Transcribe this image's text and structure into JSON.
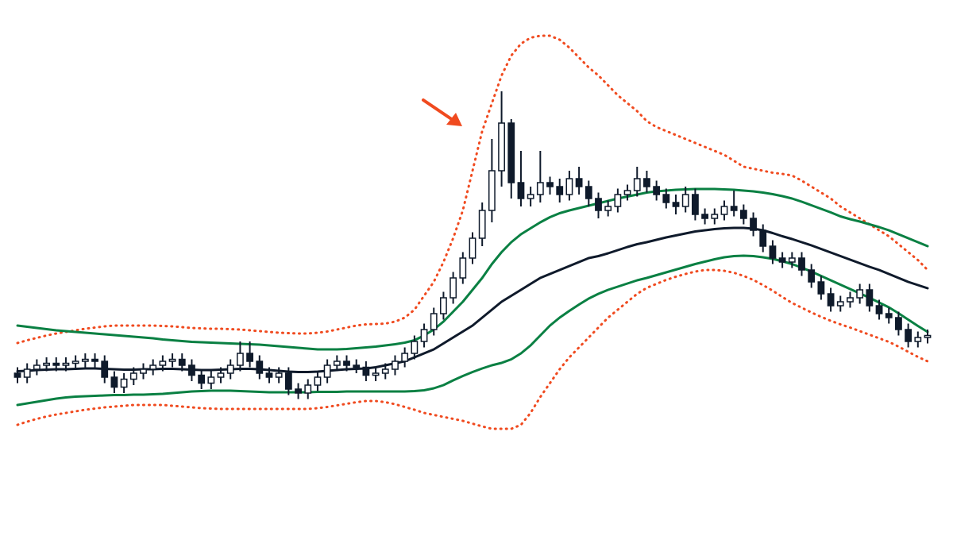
{
  "chart_data": {
    "type": "candlestick",
    "up_color": "#ffffff",
    "down_color": "#0f1a2b",
    "outline_color": "#0f1a2b",
    "ylim": [
      0,
      135
    ],
    "categories": [
      null,
      null,
      null,
      null,
      null,
      null,
      null,
      null,
      null,
      null,
      null,
      null,
      null,
      null,
      null,
      null,
      null,
      null,
      null,
      null,
      null,
      null,
      null,
      null,
      null,
      null,
      null,
      null,
      null,
      null,
      null,
      null,
      null,
      null,
      null,
      null,
      null,
      null,
      null,
      null,
      null,
      null,
      null,
      null,
      null,
      null,
      null,
      null,
      null,
      null,
      null,
      null,
      null,
      null,
      null,
      null,
      null,
      null,
      null,
      null,
      null,
      null,
      null,
      null,
      null,
      null,
      null,
      null,
      null,
      null,
      null,
      null,
      null,
      null,
      null,
      null,
      null,
      null,
      null,
      null,
      null,
      null,
      null,
      null,
      null,
      null,
      null,
      null,
      null,
      null,
      null,
      null,
      null,
      null,
      null
    ],
    "open": [
      41,
      40,
      42,
      43,
      43.5,
      43,
      43.5,
      44,
      44.5,
      44,
      40,
      37.5,
      39.5,
      41,
      42,
      43,
      44,
      44.5,
      43,
      40.5,
      38.5,
      40,
      41,
      43,
      46,
      44,
      41,
      40,
      41,
      37,
      36,
      38,
      40,
      43,
      44,
      43,
      42.5,
      40.5,
      41,
      42,
      44,
      46,
      49,
      52,
      56,
      60,
      65,
      70,
      75,
      82,
      92,
      104,
      89,
      85,
      86,
      89,
      88,
      86,
      90,
      88,
      85,
      82,
      83,
      86,
      87,
      90,
      88,
      86,
      84,
      83,
      86,
      81,
      80,
      81,
      83,
      82,
      80,
      77,
      73,
      70,
      69,
      70,
      67,
      64,
      61,
      58,
      59,
      60,
      62,
      58,
      56,
      55,
      52,
      49,
      50
    ],
    "high": [
      42.5,
      43.5,
      44.5,
      45,
      45,
      45,
      45.5,
      46,
      46,
      45.5,
      41.5,
      41,
      42.5,
      43.5,
      44.5,
      45.5,
      46,
      46,
      44.5,
      42,
      41.5,
      42.5,
      44.5,
      49,
      49,
      45.5,
      42.5,
      42.5,
      42.5,
      38.5,
      39.5,
      41.5,
      44.5,
      45.5,
      45.5,
      44.5,
      44,
      42.5,
      43.5,
      45.5,
      47.5,
      50.5,
      53.5,
      57.5,
      61.5,
      66.5,
      71.5,
      76.5,
      84,
      100,
      112,
      105,
      97,
      88,
      97,
      90.5,
      90,
      92,
      93,
      89.5,
      86.5,
      84.5,
      87.5,
      88.5,
      93,
      92,
      89.5,
      87.5,
      86,
      88,
      87.5,
      82.5,
      82.5,
      84.5,
      87,
      83.5,
      81.5,
      78.5,
      74.5,
      71.5,
      71.5,
      71.5,
      68.5,
      65.5,
      62.5,
      60.5,
      61.5,
      63.5,
      63.5,
      59.5,
      57.5,
      56.5,
      53.5,
      51.5,
      52
    ],
    "low": [
      38.5,
      38.5,
      40.5,
      41.5,
      41.5,
      41.5,
      42,
      42.5,
      42.5,
      38.5,
      36,
      36,
      38,
      39.5,
      40.5,
      41.5,
      42.5,
      41.5,
      39,
      37,
      37,
      38.5,
      39.5,
      41.5,
      42.5,
      39.5,
      38.5,
      38.5,
      35.5,
      34.5,
      34.5,
      36.5,
      38.5,
      41.5,
      41.5,
      41,
      39,
      39,
      39.5,
      40.5,
      42.5,
      44.5,
      47.5,
      50.5,
      54.5,
      58.5,
      63.5,
      68.5,
      73,
      79,
      88,
      85,
      83,
      83,
      84,
      86,
      84,
      84.5,
      86,
      83,
      80,
      80.5,
      81.5,
      84.5,
      85.5,
      86.5,
      84.5,
      82.5,
      81,
      81.5,
      79.5,
      78.5,
      78.5,
      79.5,
      80.5,
      78.5,
      75.5,
      71.5,
      68.5,
      67.5,
      67.5,
      65.5,
      62.5,
      59.5,
      56.5,
      56.5,
      57.5,
      58.5,
      56.5,
      54.5,
      53.5,
      50.5,
      47.5,
      47.5,
      48.5
    ],
    "close": [
      40,
      42,
      43,
      43.5,
      43,
      43.5,
      44,
      44.5,
      44,
      40,
      37.5,
      39.5,
      41,
      42,
      43,
      44,
      44.5,
      43,
      40.5,
      38.5,
      40,
      41,
      43,
      46,
      44,
      41,
      40,
      41,
      37,
      36,
      38,
      40,
      43,
      44,
      43,
      42.5,
      40.5,
      41,
      42,
      44,
      46,
      49,
      52,
      56,
      60,
      65,
      70,
      75,
      82,
      92,
      104,
      89,
      85,
      86,
      89,
      88,
      86,
      90,
      88,
      85,
      82,
      83,
      86,
      87,
      90,
      88,
      86,
      84,
      83,
      86,
      81,
      80,
      81,
      83,
      82,
      80,
      77,
      73,
      70,
      69,
      70,
      67,
      64,
      61,
      58,
      59,
      60,
      62,
      58,
      56,
      55,
      52,
      49,
      50,
      50.5
    ],
    "series": [
      {
        "color": "#f04a1f",
        "dash": true,
        "values": [
          48.6,
          49.3,
          49.9,
          50.5,
          51,
          51.4,
          51.8,
          52.2,
          52.5,
          52.8,
          53,
          53,
          53,
          53,
          53,
          52.9,
          52.8,
          52.6,
          52.4,
          52.3,
          52.2,
          52.2,
          52.1,
          52,
          51.8,
          51.6,
          51.4,
          51.2,
          51.1,
          51,
          51,
          51.2,
          51.5,
          52,
          52.5,
          53,
          53.3,
          53.4,
          53.5,
          54,
          55,
          57,
          60.5,
          64,
          69,
          75,
          82,
          92,
          102,
          109,
          116,
          121,
          124,
          125.5,
          126,
          126,
          125,
          123,
          120.5,
          118,
          116,
          113.5,
          111,
          109,
          107,
          104.5,
          103,
          102,
          101,
          100,
          99,
          98,
          97,
          96,
          94.5,
          93,
          92.5,
          92,
          91.5,
          91.2,
          90.8,
          89.5,
          88,
          86.5,
          85,
          83,
          81.5,
          80,
          78.5,
          77,
          75.5,
          73.5,
          71.5,
          69.5,
          67
        ]
      },
      {
        "color": "#0a8043",
        "dash": false,
        "values": [
          53,
          52.7,
          52.4,
          52.1,
          51.8,
          51.6,
          51.4,
          51.2,
          51,
          50.8,
          50.6,
          50.4,
          50.2,
          50,
          49.8,
          49.5,
          49.3,
          49.1,
          48.9,
          48.8,
          48.7,
          48.6,
          48.5,
          48.4,
          48.3,
          48.2,
          48,
          47.8,
          47.6,
          47.4,
          47.2,
          47,
          47,
          47,
          47.1,
          47.3,
          47.5,
          47.7,
          48,
          48.3,
          48.7,
          49.3,
          50.5,
          52,
          54,
          56.5,
          59,
          62,
          65,
          68.5,
          71.5,
          74,
          76,
          77.5,
          79,
          80.3,
          81.3,
          82,
          82.6,
          83.2,
          83.8,
          84.4,
          85,
          85.5,
          86,
          86.5,
          86.8,
          87,
          87.2,
          87.3,
          87.4,
          87.4,
          87.4,
          87.3,
          87.2,
          87,
          86.8,
          86.5,
          86.1,
          85.6,
          85,
          84.2,
          83.3,
          82.4,
          81.5,
          80.5,
          79.8,
          79.2,
          78.5,
          77.8,
          77,
          76,
          75,
          74,
          73
        ]
      },
      {
        "color": "#0f1a2b",
        "dash": false,
        "values": [
          41.5,
          41.6,
          41.8,
          41.9,
          42,
          42,
          42.1,
          42.2,
          42.2,
          42.1,
          42,
          41.9,
          41.9,
          42,
          42,
          42.1,
          42.1,
          42,
          41.9,
          41.8,
          41.8,
          41.9,
          42,
          42.1,
          42.1,
          42,
          41.8,
          41.6,
          41.4,
          41.3,
          41.3,
          41.4,
          41.6,
          41.8,
          42,
          42.1,
          42.2,
          42.5,
          43,
          43.5,
          44,
          45,
          46,
          47,
          48.5,
          50,
          51.5,
          53,
          55,
          57,
          59,
          60.5,
          62,
          63.5,
          65,
          66,
          67,
          68,
          69,
          70,
          70.5,
          71.2,
          72,
          72.8,
          73.5,
          74,
          74.6,
          75.2,
          75.7,
          76.2,
          76.7,
          77,
          77.3,
          77.5,
          77.6,
          77.6,
          77.4,
          77,
          76.3,
          75.5,
          74.8,
          74,
          73.2,
          72.3,
          71.4,
          70.5,
          69.6,
          68.7,
          67.8,
          67,
          66,
          65,
          64,
          63.2,
          62.4
        ]
      },
      {
        "color": "#0a8043",
        "dash": false,
        "values": [
          33,
          33.4,
          33.8,
          34.2,
          34.6,
          34.9,
          35.1,
          35.2,
          35.3,
          35.4,
          35.5,
          35.5,
          35.6,
          35.6,
          35.7,
          35.8,
          36,
          36.2,
          36.4,
          36.5,
          36.6,
          36.6,
          36.6,
          36.5,
          36.4,
          36.3,
          36.2,
          36.2,
          36.2,
          36.2,
          36.2,
          36.3,
          36.3,
          36.3,
          36.4,
          36.4,
          36.4,
          36.4,
          36.4,
          36.4,
          36.4,
          36.5,
          36.7,
          37.2,
          38,
          39.2,
          40.3,
          41.3,
          42.2,
          43,
          43.6,
          44.5,
          46,
          48,
          50.5,
          53,
          55,
          56.7,
          58.3,
          59.8,
          61,
          62,
          62.8,
          63.6,
          64.4,
          65,
          65.7,
          66.4,
          67.1,
          67.8,
          68.5,
          69.1,
          69.7,
          70.2,
          70.5,
          70.6,
          70.5,
          70.2,
          69.8,
          69.2,
          68.5,
          67.6,
          66.6,
          65.5,
          64.4,
          63.3,
          62.2,
          61.1,
          60,
          58.8,
          57.6,
          56.1,
          54.5,
          52.9,
          51.4
        ]
      },
      {
        "color": "#f04a1f",
        "dash": true,
        "values": [
          28,
          28.8,
          29.5,
          30.1,
          30.6,
          31,
          31.4,
          31.8,
          32.1,
          32.4,
          32.6,
          32.8,
          33,
          33,
          33,
          33,
          32.8,
          32.6,
          32.4,
          32.2,
          32.1,
          32,
          32,
          32,
          32,
          32,
          32,
          32,
          32,
          32,
          32,
          32.2,
          32.5,
          32.9,
          33.3,
          33.7,
          34,
          34,
          33.7,
          33.2,
          32.5,
          31.8,
          31,
          30.5,
          30,
          29.5,
          29,
          28.3,
          27.6,
          27,
          27,
          27,
          28,
          31,
          35,
          38.5,
          42,
          45,
          47.5,
          50,
          52.5,
          55,
          57,
          59,
          61,
          62.5,
          63.5,
          64.5,
          65.3,
          66,
          66.6,
          67,
          67,
          66.8,
          66.3,
          65.5,
          64.5,
          63.2,
          61.8,
          60.2,
          58.7,
          57.5,
          56.3,
          55.2,
          54.2,
          53.3,
          52.5,
          51.6,
          50.7,
          49.8,
          48.9,
          47.7,
          46.4,
          45.1,
          44
        ]
      }
    ]
  }
}
